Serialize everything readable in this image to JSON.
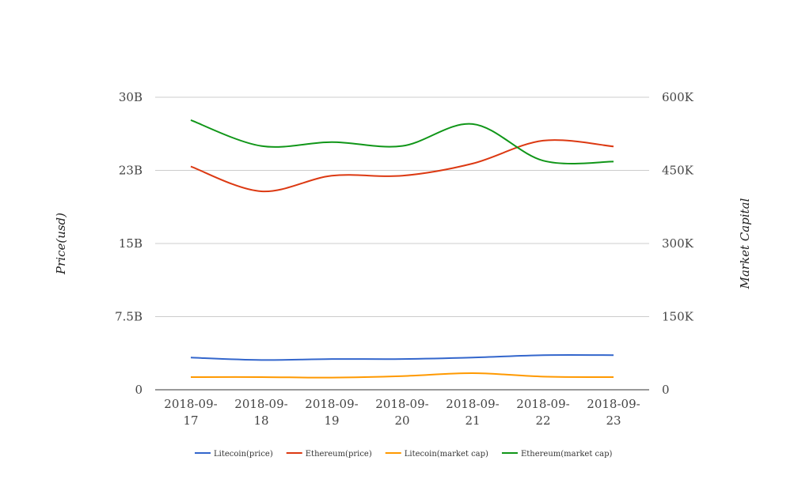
{
  "chart_data": {
    "type": "line",
    "categories": [
      "2018-09-17",
      "2018-09-18",
      "2018-09-19",
      "2018-09-20",
      "2018-09-21",
      "2018-09-22",
      "2018-09-23"
    ],
    "category_lines": [
      [
        "2018-09-",
        "17"
      ],
      [
        "2018-09-",
        "18"
      ],
      [
        "2018-09-",
        "19"
      ],
      [
        "2018-09-",
        "20"
      ],
      [
        "2018-09-",
        "21"
      ],
      [
        "2018-09-",
        "22"
      ],
      [
        "2018-09-",
        "23"
      ]
    ],
    "y_left": {
      "label": "Price(usd)",
      "range": [
        0,
        30000000000
      ],
      "ticks": [
        "0",
        "7.5B",
        "15B",
        "23B",
        "30B"
      ]
    },
    "y_right": {
      "label": "Market Capital",
      "range": [
        0,
        600000
      ],
      "ticks": [
        "0",
        "150K",
        "300K",
        "450K",
        "600K"
      ]
    },
    "grid": true,
    "legend_position": "bottom",
    "series": [
      {
        "name": "Litecoin(price)",
        "axis": "left",
        "color": "#3366cc",
        "values": [
          3300000000,
          3050000000,
          3150000000,
          3150000000,
          3300000000,
          3550000000,
          3550000000
        ]
      },
      {
        "name": "Ethereum(price)",
        "axis": "left",
        "color": "#dc3912",
        "values": [
          22900000000,
          20350000000,
          21950000000,
          21950000000,
          23200000000,
          25550000000,
          24950000000
        ]
      },
      {
        "name": "Litecoin(market cap)",
        "axis": "right",
        "color": "#ff9900",
        "values": [
          26000,
          26000,
          25000,
          28000,
          34000,
          27000,
          26000
        ]
      },
      {
        "name": "Ethereum(market cap)",
        "axis": "right",
        "color": "#109618",
        "values": [
          553000,
          500000,
          508000,
          500000,
          545000,
          470000,
          468000
        ]
      }
    ]
  }
}
